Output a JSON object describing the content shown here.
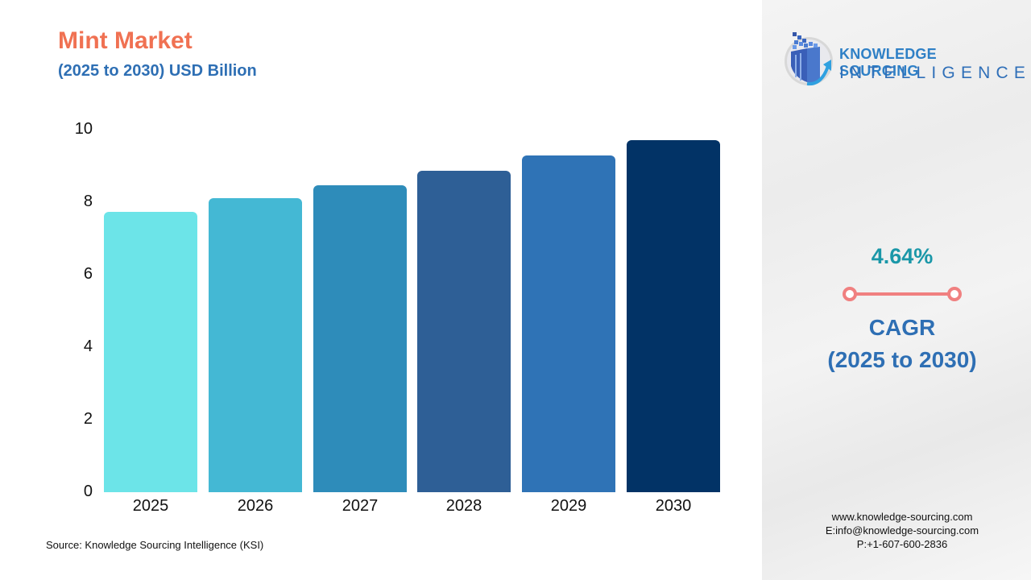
{
  "header": {
    "title": "Mint Market",
    "subtitle": "(2025 to 2030) USD Billion"
  },
  "chart_data": {
    "type": "bar",
    "title": "Mint Market",
    "subtitle": "(2025 to 2030) USD Billion",
    "categories": [
      "2025",
      "2026",
      "2027",
      "2028",
      "2029",
      "2030"
    ],
    "values": [
      7.73,
      8.11,
      8.47,
      8.87,
      9.29,
      9.71
    ],
    "colors": [
      "#6ce4e8",
      "#44b8d4",
      "#2e8cba",
      "#2e5f96",
      "#2f73b6",
      "#023366"
    ],
    "xlabel": "",
    "ylabel": "USD Billion",
    "ylim": [
      0,
      10
    ],
    "yticks": [
      "0",
      "2",
      "4",
      "6",
      "8",
      "10"
    ],
    "grid": false,
    "legend": "none"
  },
  "source": "Source: Knowledge Sourcing Intelligence (KSI)",
  "logo": {
    "line1": "KNOWLEDGE SOURCING",
    "line2": "INTELLIGENCE"
  },
  "cagr": {
    "value": "4.64%",
    "label": "CAGR",
    "period": "(2025 to 2030)",
    "value_color": "#1a97a8",
    "line_color": "#f08080"
  },
  "contact": {
    "website": "www.knowledge-sourcing.com",
    "email": "E:info@knowledge-sourcing.com",
    "phone": "P:+1-607-600-2836"
  }
}
